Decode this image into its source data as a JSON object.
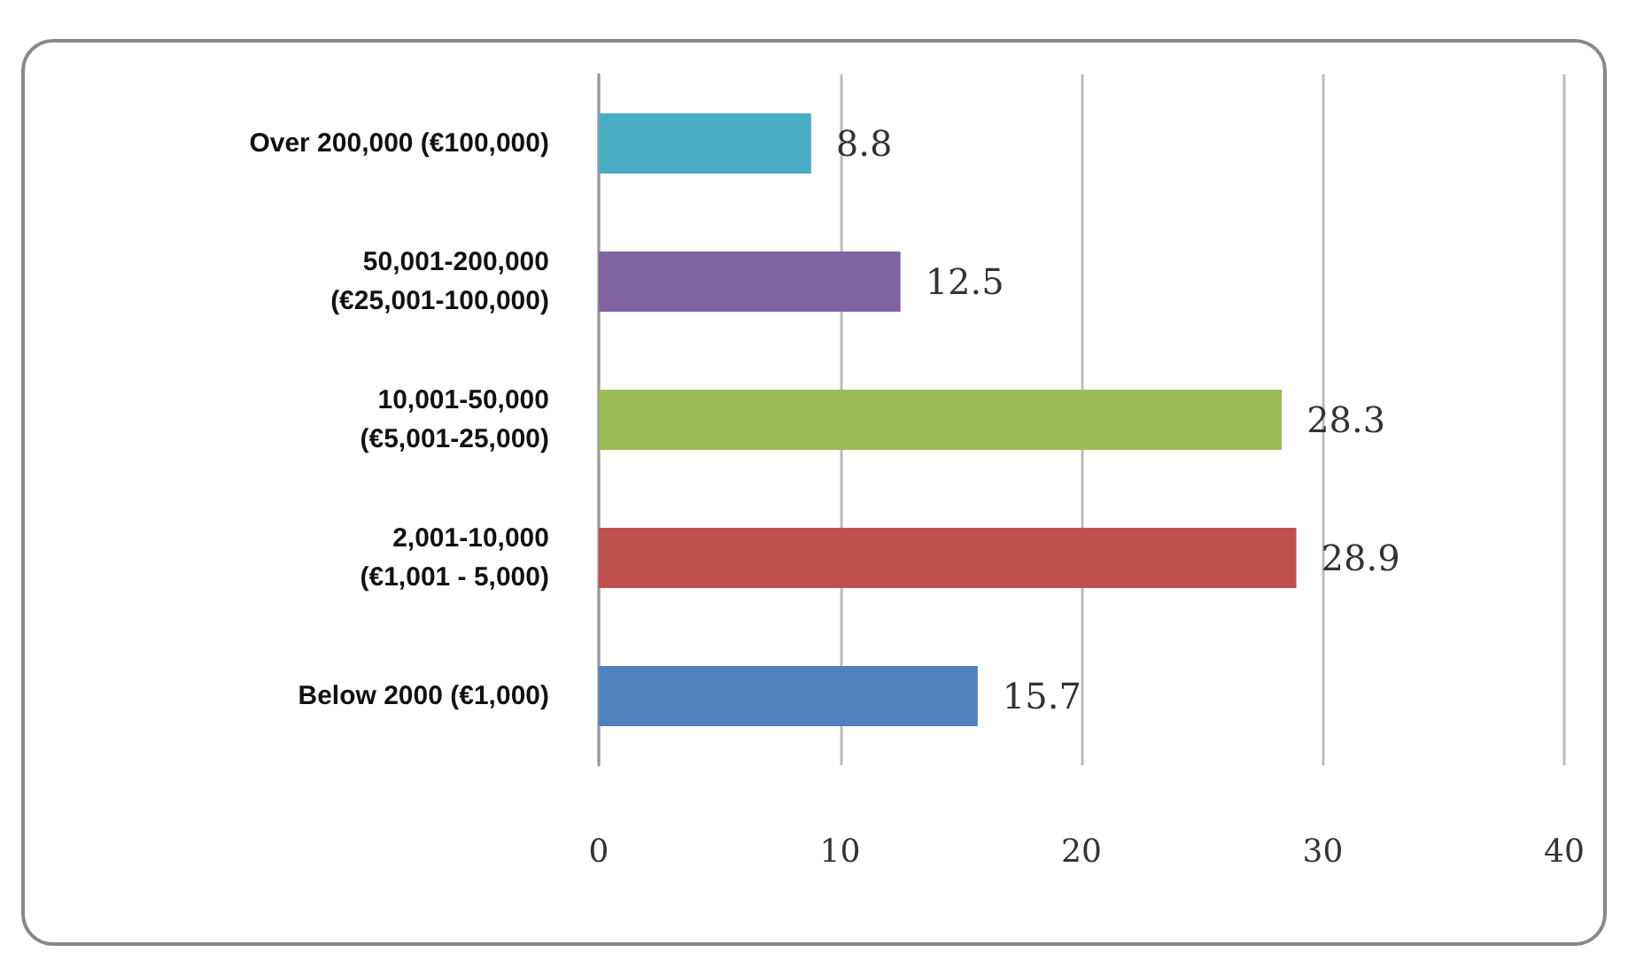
{
  "chart_data": {
    "type": "bar",
    "orientation": "horizontal",
    "categories": [
      "Over 200,000 (€100,000)",
      "50,001-200,000\n(€25,001-100,000)",
      "10,001-50,000\n(€5,001-25,000)",
      "2,001-10,000\n(€1,001 - 5,000)",
      "Below 2000 (€1,000)"
    ],
    "values": [
      8.8,
      12.5,
      28.3,
      28.9,
      15.7
    ],
    "colors": [
      "#4bacc6",
      "#8064a2",
      "#9bbb59",
      "#c0504d",
      "#4f81bd"
    ],
    "xlim": [
      0,
      40
    ],
    "xticks": [
      0,
      10,
      20,
      30,
      40
    ],
    "grid": "x",
    "data_labels": true
  }
}
